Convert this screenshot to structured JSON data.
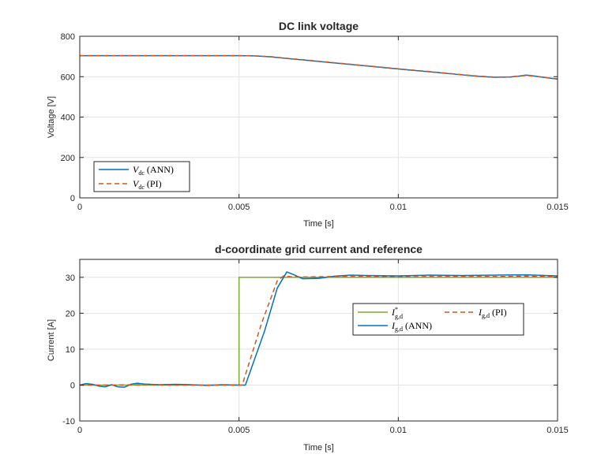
{
  "chart_data": [
    {
      "type": "line",
      "title": "DC link voltage",
      "xlabel": "Time [s]",
      "ylabel": "Voltage [V]",
      "xlim": [
        0,
        0.015
      ],
      "ylim": [
        0,
        800
      ],
      "xticks": [
        0,
        0.005,
        0.01,
        0.015
      ],
      "xtick_labels": [
        "0",
        "0.005",
        "0.01",
        "0.015"
      ],
      "yticks": [
        0,
        200,
        400,
        600,
        800
      ],
      "ytick_labels": [
        "0",
        "200",
        "400",
        "600",
        "800"
      ],
      "grid": true,
      "legend_position": "bottom-left",
      "series": [
        {
          "name": "V_dc (ANN)",
          "legend_label": {
            "sym": "V",
            "sub": "dc",
            "rest": " (ANN)"
          },
          "color": "#0072BD",
          "dash": "solid",
          "x": [
            0,
            0.001,
            0.002,
            0.003,
            0.004,
            0.005,
            0.0055,
            0.006,
            0.0065,
            0.007,
            0.008,
            0.009,
            0.01,
            0.011,
            0.012,
            0.0125,
            0.013,
            0.0135,
            0.0138,
            0.014,
            0.0142,
            0.0145,
            0.015
          ],
          "y": [
            704,
            704,
            704,
            704,
            704,
            704,
            703,
            698,
            690,
            683,
            668,
            653,
            638,
            624,
            609,
            602,
            597,
            598,
            603,
            608,
            605,
            598,
            588
          ]
        },
        {
          "name": "V_dc (PI)",
          "legend_label": {
            "sym": "V",
            "sub": "dc",
            "rest": " (PI)"
          },
          "color": "#D95319",
          "dash": "6,4",
          "x": [
            0,
            0.001,
            0.002,
            0.003,
            0.004,
            0.005,
            0.0055,
            0.006,
            0.0065,
            0.007,
            0.008,
            0.009,
            0.01,
            0.011,
            0.012,
            0.0125,
            0.013,
            0.0135,
            0.0138,
            0.014,
            0.0142,
            0.0145,
            0.015
          ],
          "y": [
            704,
            704,
            704,
            704,
            704,
            704,
            703,
            699,
            691,
            684,
            669,
            654,
            639,
            625,
            610,
            603,
            598,
            599,
            603,
            606,
            604,
            598,
            589
          ]
        }
      ]
    },
    {
      "type": "line",
      "title": "d-coordinate grid current and reference",
      "xlabel": "Time [s]",
      "ylabel": "Current [A]",
      "xlim": [
        0,
        0.015
      ],
      "ylim": [
        -10,
        35
      ],
      "xticks": [
        0,
        0.005,
        0.01,
        0.015
      ],
      "xtick_labels": [
        "0",
        "0.005",
        "0.01",
        "0.015"
      ],
      "yticks": [
        -10,
        0,
        10,
        20,
        30
      ],
      "ytick_labels": [
        "-10",
        "0",
        "10",
        "20",
        "30"
      ],
      "grid": true,
      "legend_position": "right-center",
      "series": [
        {
          "name": "I*_g,d",
          "legend_label": {
            "sym": "I",
            "sup": "*",
            "sub": "g,d",
            "rest": ""
          },
          "color": "#77AC30",
          "dash": "solid",
          "x": [
            0,
            0.005,
            0.005,
            0.015
          ],
          "y": [
            0,
            0,
            30,
            30
          ]
        },
        {
          "name": "I_g,d (ANN)",
          "legend_label": {
            "sym": "I",
            "sub": "g,d",
            "rest": " (ANN)"
          },
          "color": "#0072BD",
          "dash": "solid",
          "x": [
            0,
            0.0002,
            0.0004,
            0.0006,
            0.0008,
            0.001,
            0.0012,
            0.0014,
            0.0016,
            0.0018,
            0.002,
            0.0025,
            0.003,
            0.0035,
            0.004,
            0.0045,
            0.005,
            0.0052,
            0.0058,
            0.0062,
            0.0065,
            0.0067,
            0.007,
            0.0075,
            0.008,
            0.0085,
            0.009,
            0.01,
            0.011,
            0.012,
            0.013,
            0.014,
            0.015
          ],
          "y": [
            0,
            0.4,
            0.2,
            -0.3,
            -0.5,
            0.1,
            -0.5,
            -0.6,
            0.2,
            0.5,
            0.3,
            0.1,
            0.2,
            0.1,
            -0.1,
            0.1,
            0,
            0,
            15,
            27,
            31.5,
            30.8,
            29.6,
            29.7,
            30.3,
            30.6,
            30.5,
            30.4,
            30.6,
            30.5,
            30.6,
            30.7,
            30.4
          ]
        },
        {
          "name": "I_g,d (PI)",
          "legend_label": {
            "sym": "I",
            "sub": "g,d",
            "rest": " (PI)"
          },
          "color": "#D95319",
          "dash": "6,4",
          "x": [
            0,
            0.001,
            0.002,
            0.003,
            0.004,
            0.005,
            0.0051,
            0.0057,
            0.0062,
            0.0064,
            0.0066,
            0.007,
            0.008,
            0.009,
            0.01,
            0.011,
            0.012,
            0.013,
            0.014,
            0.015
          ],
          "y": [
            0,
            0,
            0.1,
            0,
            0,
            0,
            0,
            17,
            29,
            30.4,
            30.2,
            30.1,
            30.2,
            30.2,
            30.1,
            30.2,
            30.2,
            30.2,
            30.3,
            30.2
          ]
        }
      ]
    }
  ]
}
